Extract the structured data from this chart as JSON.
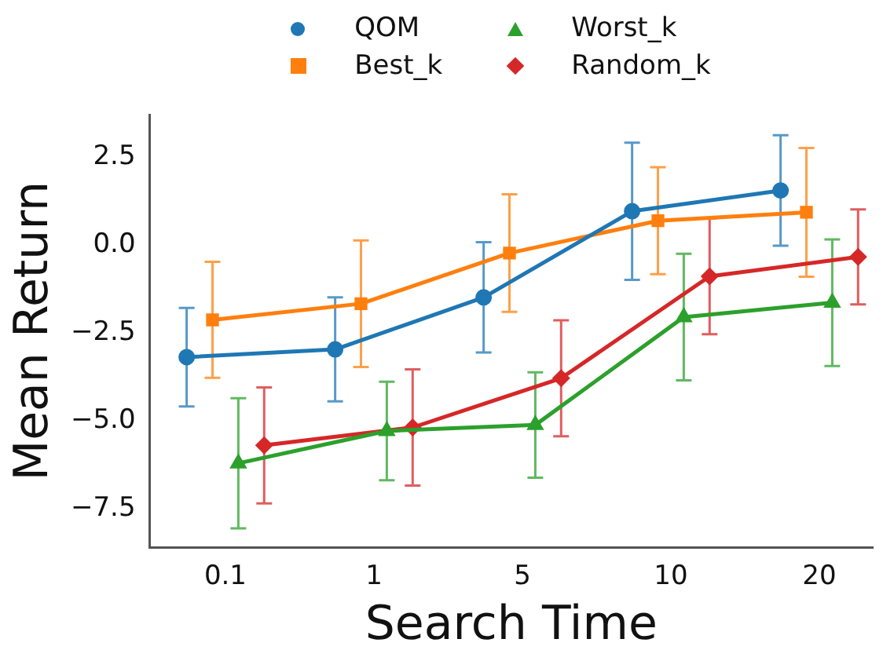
{
  "chart_data": {
    "type": "line",
    "xlabel": "Search Time",
    "ylabel": "Mean Return",
    "categories": [
      "0.1",
      "1",
      "5",
      "10",
      "20"
    ],
    "ylim": [
      -8.6,
      3.7
    ],
    "yticks": [
      {
        "value": -7.5,
        "label": "−7.5"
      },
      {
        "value": -5,
        "label": "−5.0"
      },
      {
        "value": -2.5,
        "label": "−2.5"
      },
      {
        "value": 0,
        "label": "0.0"
      },
      {
        "value": 2.5,
        "label": "2.5"
      }
    ],
    "grid": false,
    "legend": "top",
    "line_style": "solid",
    "series": [
      {
        "name": "QOM",
        "color": "#1f77b4",
        "marker": "circle",
        "values": [
          -3.19,
          -2.97,
          -1.49,
          0.96,
          1.55
        ],
        "errors": [
          1.4,
          1.48,
          1.57,
          1.95,
          1.57
        ]
      },
      {
        "name": "Best_k",
        "color": "#ff7f0e",
        "marker": "square",
        "values": [
          -2.13,
          -1.67,
          -0.23,
          0.69,
          0.93
        ],
        "errors": [
          1.65,
          1.8,
          1.67,
          1.52,
          1.83
        ]
      },
      {
        "name": "Worst_k",
        "color": "#2ca02c",
        "marker": "triangle",
        "values": [
          -6.21,
          -5.29,
          -5.12,
          -2.05,
          -1.64
        ],
        "errors": [
          1.85,
          1.4,
          1.5,
          1.8,
          1.8
        ]
      },
      {
        "name": "Random_k",
        "color": "#d62728",
        "marker": "diamond",
        "values": [
          -5.7,
          -5.19,
          -3.79,
          -0.89,
          -0.34
        ],
        "errors": [
          1.65,
          1.65,
          1.65,
          1.65,
          1.35
        ]
      }
    ]
  }
}
